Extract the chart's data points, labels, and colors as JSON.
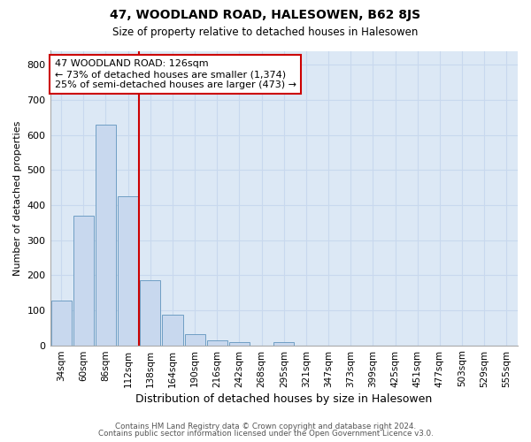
{
  "title1": "47, WOODLAND ROAD, HALESOWEN, B62 8JS",
  "title2": "Size of property relative to detached houses in Halesowen",
  "xlabel": "Distribution of detached houses by size in Halesowen",
  "ylabel": "Number of detached properties",
  "categories": [
    "34sqm",
    "60sqm",
    "86sqm",
    "112sqm",
    "138sqm",
    "164sqm",
    "190sqm",
    "216sqm",
    "242sqm",
    "268sqm",
    "295sqm",
    "321sqm",
    "347sqm",
    "373sqm",
    "399sqm",
    "425sqm",
    "451sqm",
    "477sqm",
    "503sqm",
    "529sqm",
    "555sqm"
  ],
  "values": [
    128,
    370,
    630,
    425,
    185,
    88,
    32,
    15,
    8,
    0,
    8,
    0,
    0,
    0,
    0,
    0,
    0,
    0,
    0,
    0,
    0
  ],
  "bar_color": "#c8d8ee",
  "bar_edgecolor": "#6f9ec4",
  "grid_color": "#c8d8ee",
  "bg_color": "#dce8f5",
  "red_line_x": 3.5,
  "annotation_line1": "47 WOODLAND ROAD: 126sqm",
  "annotation_line2": "← 73% of detached houses are smaller (1,374)",
  "annotation_line3": "25% of semi-detached houses are larger (473) →",
  "ylim": [
    0,
    840
  ],
  "yticks": [
    0,
    100,
    200,
    300,
    400,
    500,
    600,
    700,
    800
  ],
  "footer1": "Contains HM Land Registry data © Crown copyright and database right 2024.",
  "footer2": "Contains public sector information licensed under the Open Government Licence v3.0."
}
